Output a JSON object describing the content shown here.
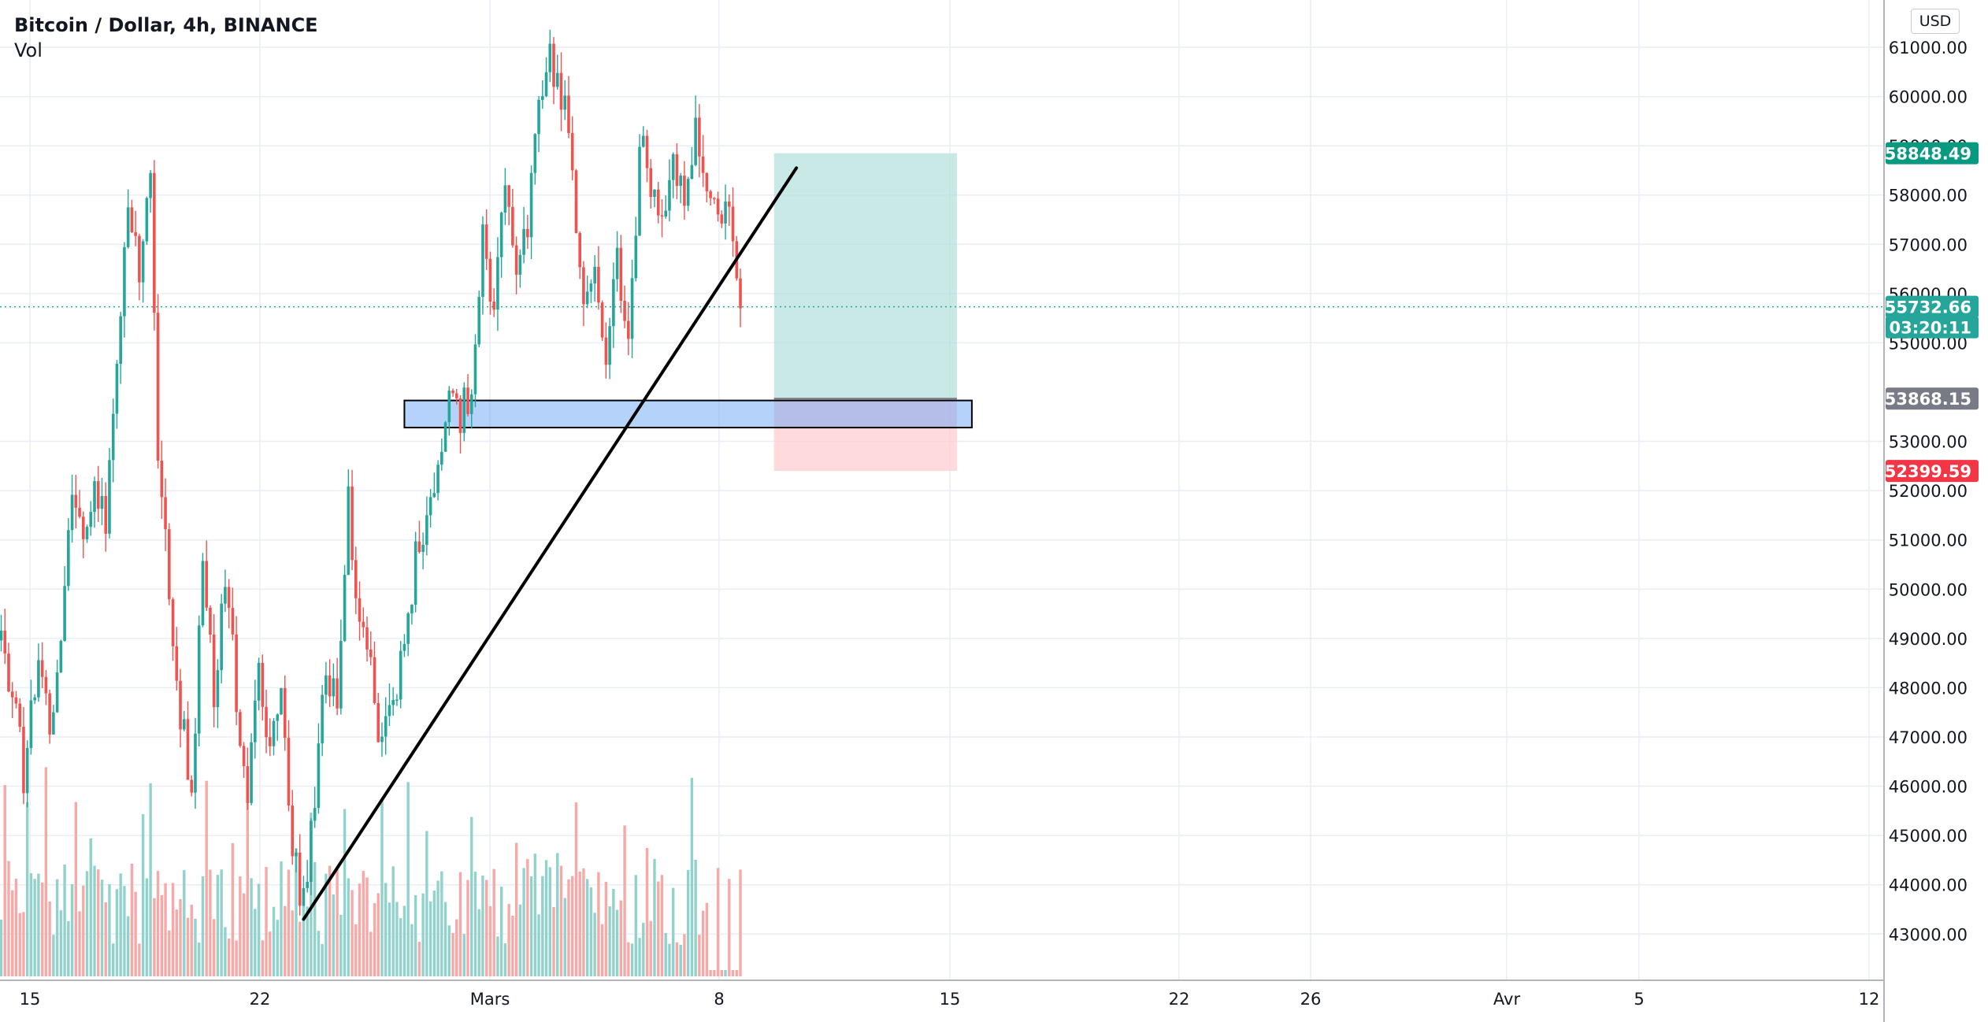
{
  "chart_header": {
    "symbol_title": "Bitcoin / Dollar, 4h, BINANCE",
    "volume_label": "Vol",
    "currency_button": "USD"
  },
  "chart_data": {
    "type": "candlestick",
    "title": "Bitcoin / Dollar, 4h, BINANCE",
    "y_axis": {
      "ticks": [
        "61000.00",
        "60000.00",
        "59000.00",
        "58000.00",
        "57000.00",
        "56000.00",
        "55000.00",
        "53000.00",
        "52000.00",
        "51000.00",
        "50000.00",
        "49000.00",
        "48000.00",
        "47000.00",
        "46000.00",
        "45000.00",
        "44000.00",
        "43000.00"
      ],
      "range": [
        42300,
        61500
      ],
      "position": "right"
    },
    "x_axis": {
      "ticks": [
        "15",
        "22",
        "Mars",
        "8",
        "15",
        "22",
        "26",
        "Avr",
        "5",
        "12"
      ]
    },
    "price_labels": [
      {
        "value": "58848.49",
        "kind": "take-profit",
        "color": "#089981"
      },
      {
        "value": "55732.66",
        "kind": "last-price",
        "color": "#26a69a"
      },
      {
        "value": "03:20:11",
        "kind": "bar-countdown",
        "color": "#26a69a"
      },
      {
        "value": "53868.15",
        "kind": "entry",
        "color": "#787b86"
      },
      {
        "value": "52399.59",
        "kind": "stop-loss",
        "color": "#f23645"
      }
    ],
    "candle_path": [
      [
        0,
        48800
      ],
      [
        3,
        48000
      ],
      [
        6,
        46200
      ],
      [
        10,
        48800
      ],
      [
        13,
        47200
      ],
      [
        16,
        49400
      ],
      [
        19,
        51800
      ],
      [
        22,
        51100
      ],
      [
        25,
        52300
      ],
      [
        28,
        51500
      ],
      [
        31,
        54200
      ],
      [
        34,
        57900
      ],
      [
        37,
        56500
      ],
      [
        40,
        58300
      ],
      [
        42,
        52800
      ],
      [
        45,
        50000
      ],
      [
        48,
        47600
      ],
      [
        51,
        45600
      ],
      [
        54,
        51000
      ],
      [
        57,
        47800
      ],
      [
        60,
        50400
      ],
      [
        63,
        47900
      ],
      [
        66,
        45800
      ],
      [
        69,
        48200
      ],
      [
        72,
        46500
      ],
      [
        75,
        47900
      ],
      [
        78,
        44600
      ],
      [
        81,
        43600
      ],
      [
        84,
        46000
      ],
      [
        87,
        48500
      ],
      [
        90,
        47400
      ],
      [
        93,
        51700
      ],
      [
        96,
        49500
      ],
      [
        99,
        48200
      ],
      [
        102,
        46900
      ],
      [
        105,
        47600
      ],
      [
        108,
        49000
      ],
      [
        111,
        50600
      ],
      [
        114,
        51700
      ],
      [
        117,
        52600
      ],
      [
        120,
        53700
      ],
      [
        123,
        53400
      ],
      [
        126,
        54300
      ],
      [
        129,
        57000
      ],
      [
        132,
        55400
      ],
      [
        135,
        58100
      ],
      [
        138,
        56700
      ],
      [
        141,
        57200
      ],
      [
        144,
        59800
      ],
      [
        147,
        60800
      ],
      [
        150,
        60100
      ],
      [
        153,
        58600
      ],
      [
        156,
        55600
      ],
      [
        159,
        56500
      ],
      [
        162,
        54800
      ],
      [
        165,
        56500
      ],
      [
        168,
        54700
      ],
      [
        171,
        59000
      ],
      [
        174,
        58400
      ],
      [
        177,
        57400
      ],
      [
        180,
        58800
      ],
      [
        183,
        58200
      ],
      [
        186,
        59200
      ],
      [
        189,
        57800
      ],
      [
        192,
        57400
      ],
      [
        195,
        57700
      ],
      [
        196,
        57100
      ],
      [
        198,
        55700
      ]
    ],
    "trendline": {
      "from": {
        "bar": 81,
        "price": 43300
      },
      "to": {
        "bar": 213,
        "price": 58550
      }
    },
    "support_zone": {
      "from_bar": 108,
      "to_bar": 260,
      "price_high": 53830,
      "price_low": 53280
    },
    "position_tool": {
      "type": "long",
      "entry": 53868.15,
      "take_profit": 58848.49,
      "stop_loss": 52399.59,
      "from_bar": 207,
      "to_bar": 256,
      "profit_color": "#b2dfdb",
      "loss_color": "#ffcdd2"
    },
    "last_price": 55732.66,
    "colors": {
      "up": "#26a69a",
      "down": "#ef5350",
      "volume_up": "#92d2cc",
      "volume_down": "#f7a9a7",
      "grid": "#e9edf5",
      "axis_text": "#131722"
    },
    "grid": true
  }
}
